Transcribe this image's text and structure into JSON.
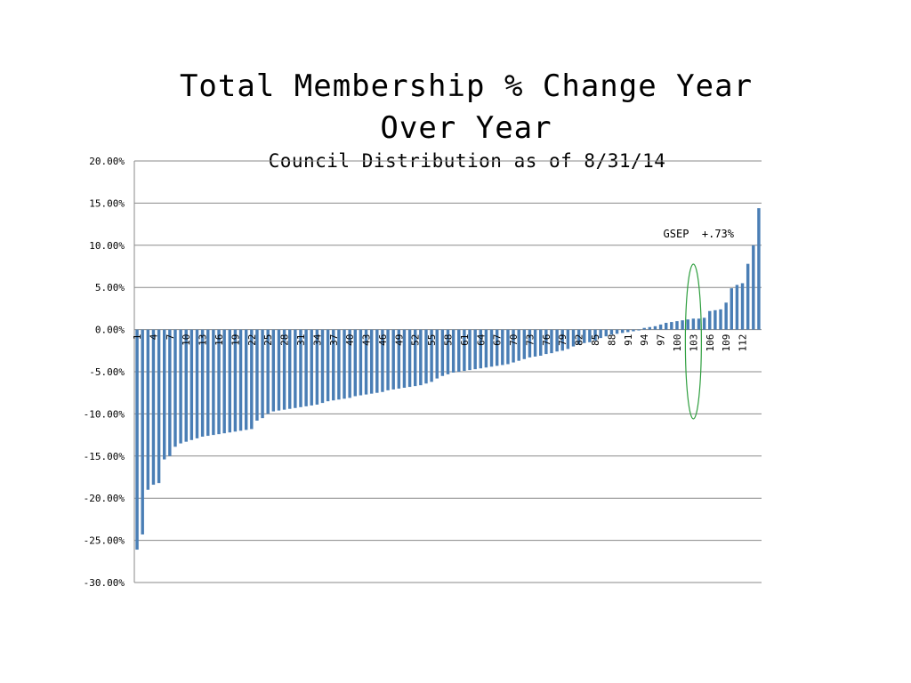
{
  "chart_data": {
    "type": "bar",
    "title_line1": "Total Membership % Change Year",
    "title_line2": "Over Year",
    "subtitle": "Council Distribution as of 8/31/14",
    "xlabel": "",
    "ylabel": "",
    "ylim": [
      -30,
      20
    ],
    "y_ticks": [
      {
        "value": 20,
        "label": "20.00%"
      },
      {
        "value": 15,
        "label": "15.00%"
      },
      {
        "value": 10,
        "label": "10.00%"
      },
      {
        "value": 5,
        "label": "5.00%"
      },
      {
        "value": 0,
        "label": "0.00%"
      },
      {
        "value": -5,
        "label": "-5.00%"
      },
      {
        "value": -10,
        "label": "-10.00%"
      },
      {
        "value": -15,
        "label": "-15.00%"
      },
      {
        "value": -20,
        "label": "-20.00%"
      },
      {
        "value": -25,
        "label": "-25.00%"
      },
      {
        "value": -30,
        "label": "-30.00%"
      }
    ],
    "x_tick_labels": [
      "1",
      "4",
      "7",
      "10",
      "13",
      "16",
      "19",
      "22",
      "25",
      "28",
      "31",
      "34",
      "37",
      "40",
      "43",
      "46",
      "49",
      "52",
      "55",
      "58",
      "61",
      "64",
      "67",
      "70",
      "73",
      "76",
      "79",
      "82",
      "85",
      "88",
      "91",
      "94",
      "97",
      "100",
      "103",
      "106",
      "109",
      "112"
    ],
    "grid": true,
    "bar_color": "#4a7eb5",
    "values": [
      -26.1,
      -24.3,
      -19.0,
      -18.4,
      -18.2,
      -15.4,
      -15.0,
      -13.9,
      -13.5,
      -13.3,
      -13.1,
      -12.9,
      -12.7,
      -12.6,
      -12.5,
      -12.4,
      -12.3,
      -12.2,
      -12.1,
      -12.0,
      -11.9,
      -11.8,
      -10.8,
      -10.5,
      -10.0,
      -9.7,
      -9.6,
      -9.5,
      -9.4,
      -9.3,
      -9.2,
      -9.1,
      -9.0,
      -8.9,
      -8.7,
      -8.5,
      -8.4,
      -8.3,
      -8.2,
      -8.1,
      -7.9,
      -7.8,
      -7.7,
      -7.6,
      -7.5,
      -7.4,
      -7.2,
      -7.1,
      -7.0,
      -6.9,
      -6.8,
      -6.7,
      -6.6,
      -6.4,
      -6.2,
      -5.8,
      -5.5,
      -5.3,
      -5.1,
      -5.0,
      -4.9,
      -4.8,
      -4.7,
      -4.6,
      -4.5,
      -4.4,
      -4.3,
      -4.2,
      -4.1,
      -3.9,
      -3.7,
      -3.5,
      -3.3,
      -3.2,
      -3.1,
      -2.9,
      -2.8,
      -2.6,
      -2.5,
      -2.3,
      -2.0,
      -1.8,
      -1.6,
      -1.5,
      -1.3,
      -1.0,
      -0.8,
      -0.6,
      -0.5,
      -0.4,
      -0.3,
      -0.2,
      -0.1,
      0.2,
      0.3,
      0.4,
      0.6,
      0.8,
      0.9,
      1.0,
      1.1,
      1.2,
      1.3,
      1.3,
      1.4,
      2.2,
      2.3,
      2.4,
      3.2,
      4.9,
      5.3,
      5.5,
      7.8,
      10.0,
      14.4
    ],
    "annotation": {
      "text": "GSEP  +.73%",
      "target_index": 102
    },
    "highlight_color": "#2e9e3e"
  }
}
